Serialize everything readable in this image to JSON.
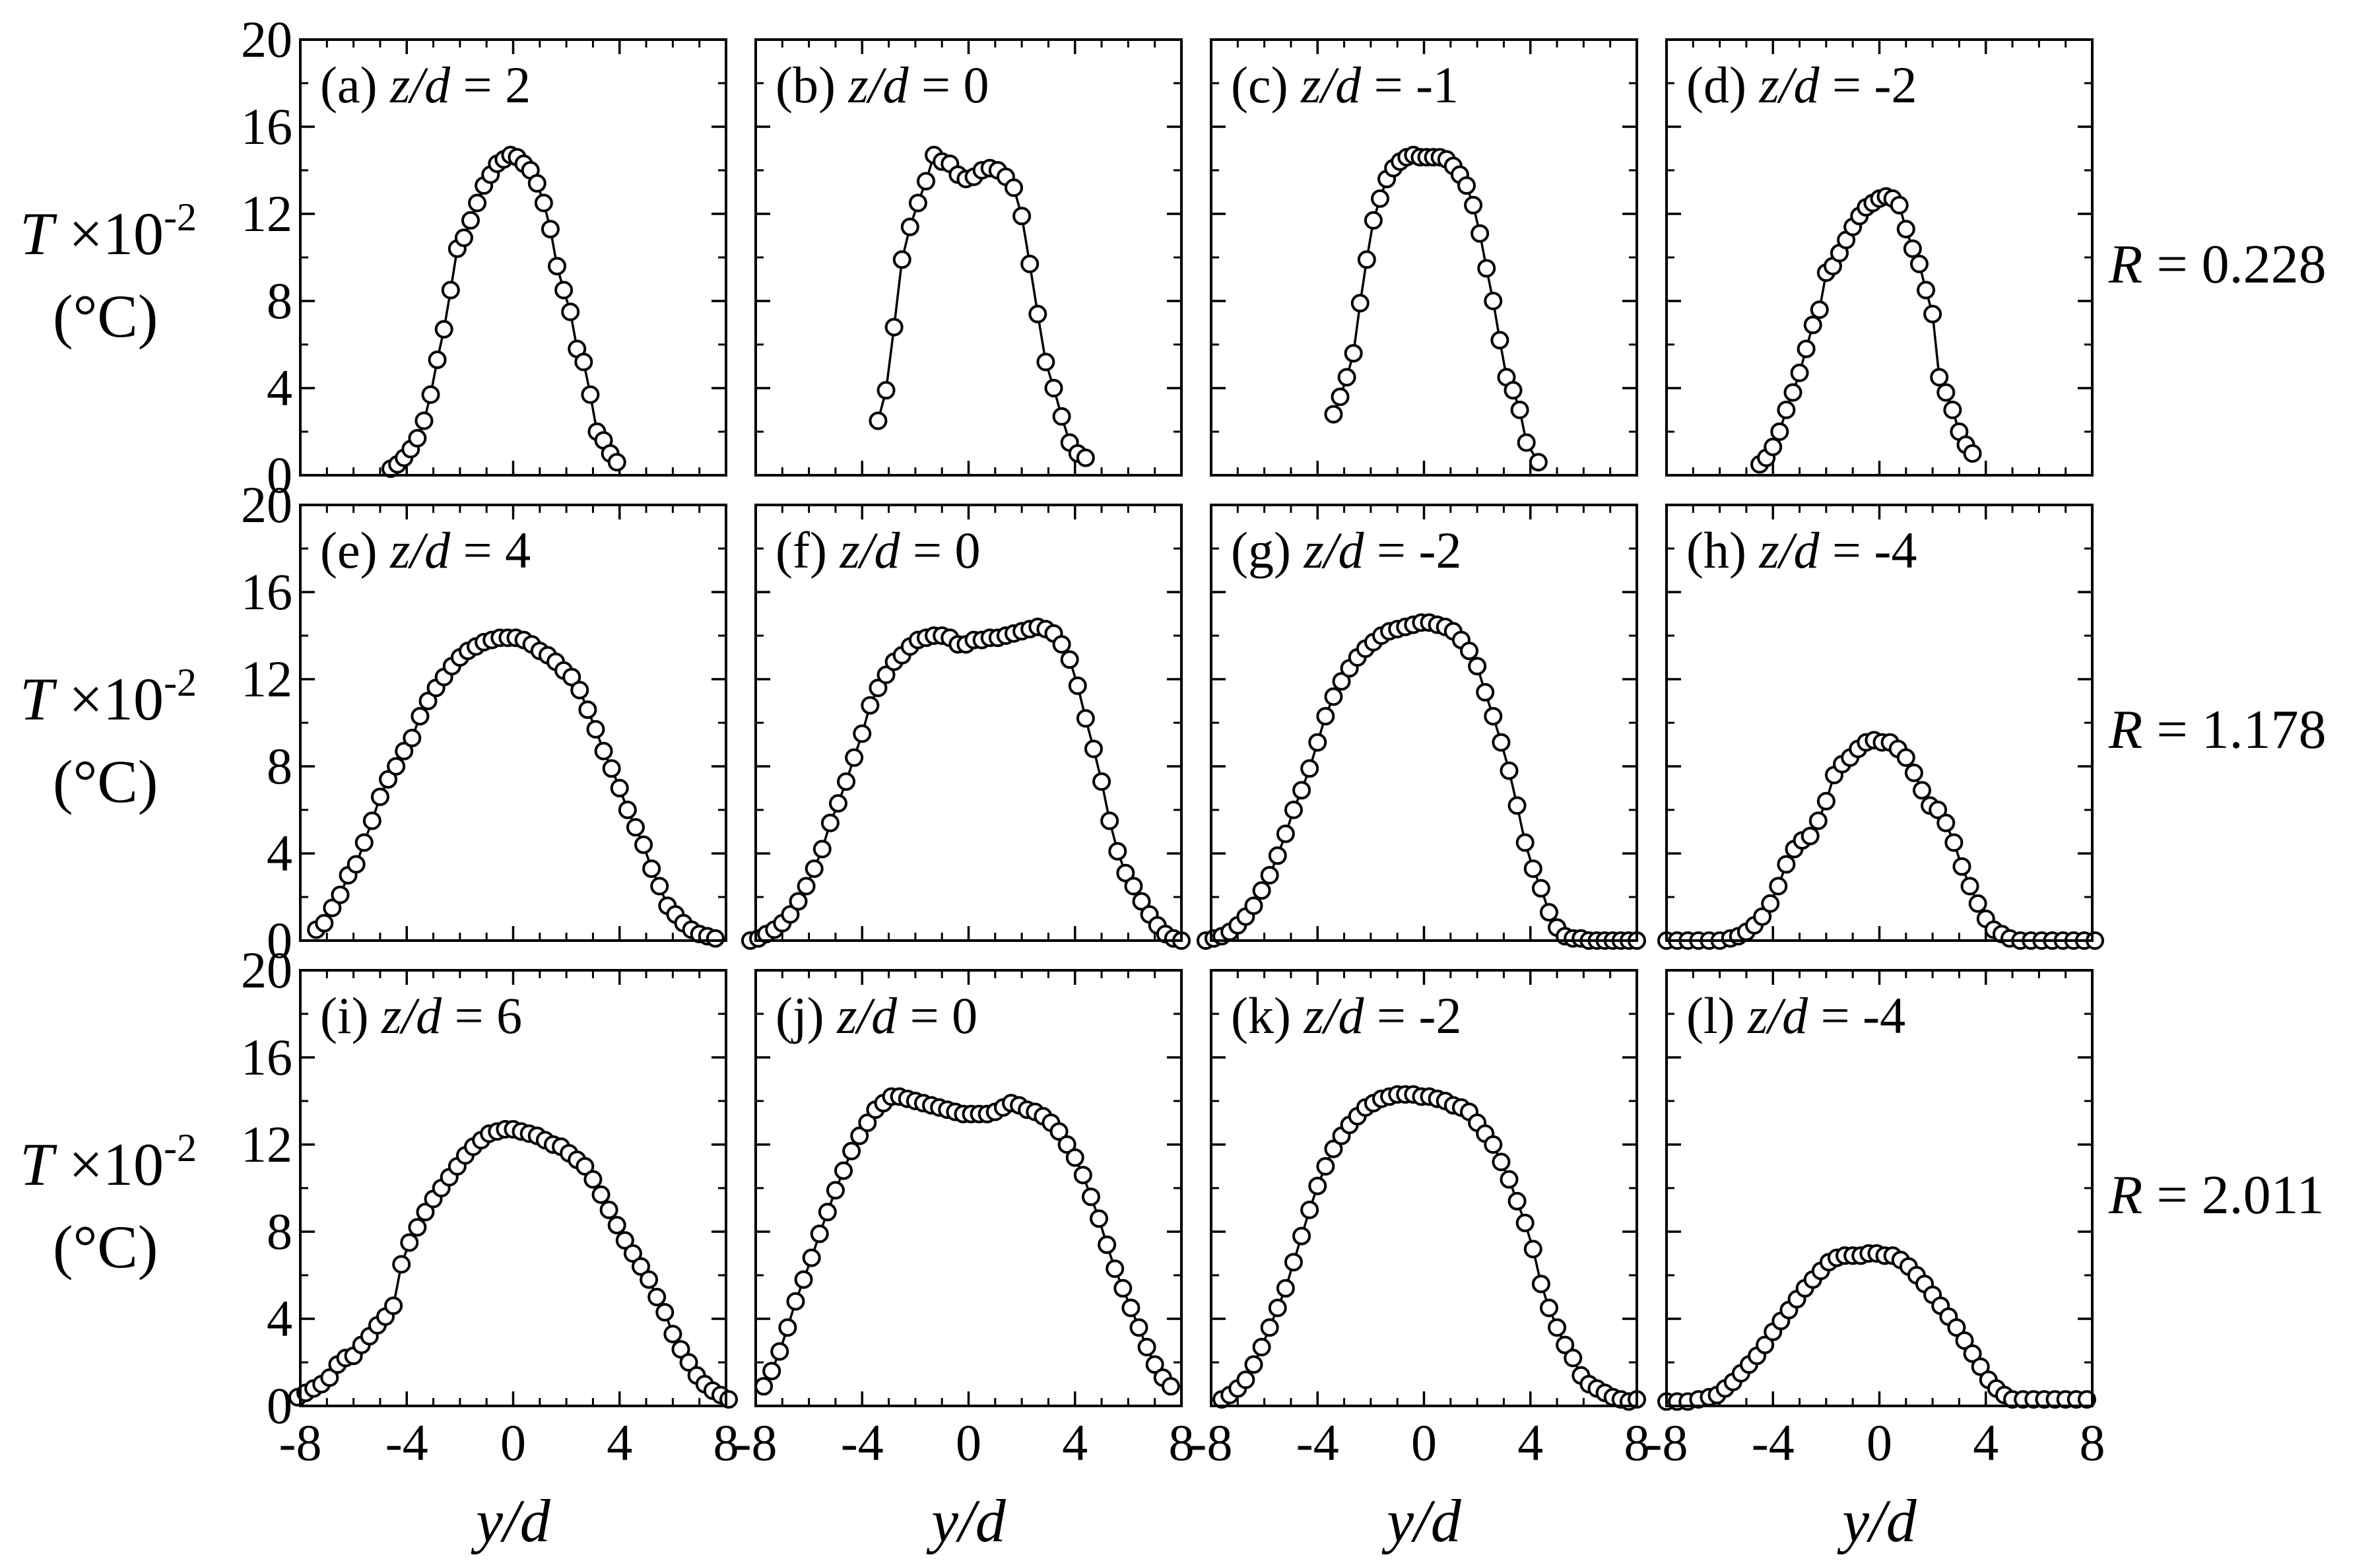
{
  "chart_data": {
    "type": "scatter",
    "layout": "3x4 grid",
    "y_label": {
      "var": "T",
      "mult": "×10",
      "exp": "-2",
      "unit": "(°C)"
    },
    "x_label": "y/d",
    "ylim": [
      0,
      20
    ],
    "y_ticks": [
      0,
      4,
      8,
      12,
      16,
      20
    ],
    "y_ticklabels": [
      "0",
      "4",
      "8",
      "12",
      "16",
      "20"
    ],
    "xlim": [
      -8,
      8
    ],
    "x_ticks": [
      -8,
      -4,
      0,
      4,
      8
    ],
    "x_ticklabels": [
      "-8",
      "-4",
      "0",
      "4",
      "8"
    ],
    "rows": [
      {
        "R_label": "R",
        "R_value": "= 0.228"
      },
      {
        "R_label": "R",
        "R_value": "= 1.178"
      },
      {
        "R_label": "R",
        "R_value": "= 2.011"
      }
    ],
    "panels": [
      {
        "letter": "(a)",
        "zd_label": "z/d",
        "zd_value": "= 2",
        "x": [
          -4.6,
          -4.35,
          -4.1,
          -3.85,
          -3.6,
          -3.35,
          -3.1,
          -2.85,
          -2.6,
          -2.35,
          -2.1,
          -1.85,
          -1.6,
          -1.35,
          -1.1,
          -0.85,
          -0.6,
          -0.35,
          -0.1,
          0.15,
          0.4,
          0.65,
          0.9,
          1.15,
          1.4,
          1.65,
          1.9,
          2.15,
          2.4,
          2.65,
          2.9,
          3.15,
          3.4,
          3.65,
          3.9
        ],
        "y": [
          0.3,
          0.5,
          0.8,
          1.2,
          1.7,
          2.5,
          3.7,
          5.3,
          6.7,
          8.5,
          10.4,
          10.9,
          11.7,
          12.5,
          13.3,
          13.8,
          14.3,
          14.5,
          14.7,
          14.6,
          14.3,
          14.0,
          13.4,
          12.5,
          11.3,
          9.6,
          8.5,
          7.5,
          5.8,
          5.2,
          3.7,
          2.0,
          1.6,
          1.0,
          0.6
        ]
      },
      {
        "letter": "(b)",
        "zd_label": "z/d",
        "zd_value": "= 0",
        "x": [
          -3.4,
          -3.1,
          -2.8,
          -2.5,
          -2.2,
          -1.9,
          -1.6,
          -1.3,
          -1.0,
          -0.7,
          -0.4,
          -0.1,
          0.2,
          0.5,
          0.8,
          1.1,
          1.4,
          1.7,
          2.0,
          2.3,
          2.6,
          2.9,
          3.2,
          3.5,
          3.8,
          4.1,
          4.4
        ],
        "y": [
          2.5,
          3.9,
          6.8,
          9.9,
          11.4,
          12.5,
          13.5,
          14.7,
          14.4,
          14.3,
          13.8,
          13.6,
          13.7,
          14.0,
          14.1,
          14.0,
          13.7,
          13.2,
          11.9,
          9.7,
          7.4,
          5.2,
          4.0,
          2.7,
          1.5,
          1.0,
          0.8
        ]
      },
      {
        "letter": "(c)",
        "zd_label": "z/d",
        "zd_value": "= -1",
        "x": [
          -3.4,
          -3.15,
          -2.9,
          -2.65,
          -2.4,
          -2.15,
          -1.9,
          -1.65,
          -1.4,
          -1.15,
          -0.9,
          -0.65,
          -0.4,
          -0.15,
          0.1,
          0.35,
          0.6,
          0.85,
          1.1,
          1.35,
          1.6,
          1.85,
          2.1,
          2.35,
          2.6,
          2.85,
          3.1,
          3.35,
          3.6,
          3.85,
          4.3
        ],
        "y": [
          2.8,
          3.6,
          4.5,
          5.6,
          7.9,
          9.9,
          11.7,
          12.7,
          13.6,
          14.1,
          14.4,
          14.6,
          14.7,
          14.6,
          14.6,
          14.6,
          14.6,
          14.5,
          14.2,
          13.8,
          13.3,
          12.4,
          11.1,
          9.5,
          8.0,
          6.2,
          4.5,
          3.9,
          3.0,
          1.5,
          0.6
        ]
      },
      {
        "letter": "(d)",
        "zd_label": "z/d",
        "zd_value": "= -2",
        "x": [
          -4.5,
          -4.25,
          -4.0,
          -3.75,
          -3.5,
          -3.25,
          -3.0,
          -2.75,
          -2.5,
          -2.25,
          -2.0,
          -1.75,
          -1.5,
          -1.25,
          -1.0,
          -0.75,
          -0.5,
          -0.25,
          0.0,
          0.25,
          0.5,
          0.75,
          1.0,
          1.25,
          1.5,
          1.75,
          2.0,
          2.25,
          2.5,
          2.75,
          3.0,
          3.25,
          3.5
        ],
        "y": [
          0.5,
          0.8,
          1.3,
          2.0,
          3.0,
          3.8,
          4.7,
          5.8,
          6.9,
          7.6,
          9.3,
          9.6,
          10.2,
          10.8,
          11.4,
          11.9,
          12.3,
          12.5,
          12.7,
          12.8,
          12.7,
          12.4,
          11.3,
          10.4,
          9.7,
          8.5,
          7.4,
          4.5,
          3.8,
          3.0,
          2.0,
          1.4,
          1.0
        ]
      },
      {
        "letter": "(e)",
        "zd_label": "z/d",
        "zd_value": "= 4",
        "x": [
          -7.4,
          -7.1,
          -6.8,
          -6.5,
          -6.2,
          -5.9,
          -5.6,
          -5.3,
          -5.0,
          -4.7,
          -4.4,
          -4.1,
          -3.8,
          -3.5,
          -3.2,
          -2.9,
          -2.6,
          -2.3,
          -2.0,
          -1.7,
          -1.4,
          -1.1,
          -0.8,
          -0.5,
          -0.2,
          0.1,
          0.4,
          0.7,
          1.0,
          1.3,
          1.6,
          1.9,
          2.2,
          2.5,
          2.8,
          3.1,
          3.4,
          3.7,
          4.0,
          4.3,
          4.6,
          4.9,
          5.2,
          5.5,
          5.8,
          6.1,
          6.4,
          6.7,
          7.0,
          7.3,
          7.6
        ],
        "y": [
          0.5,
          0.8,
          1.5,
          2.1,
          3.0,
          3.5,
          4.5,
          5.5,
          6.6,
          7.4,
          8.0,
          8.7,
          9.3,
          10.3,
          11.0,
          11.6,
          12.1,
          12.6,
          13.0,
          13.3,
          13.5,
          13.7,
          13.8,
          13.9,
          13.9,
          13.9,
          13.8,
          13.6,
          13.3,
          13.1,
          12.8,
          12.4,
          12.1,
          11.5,
          10.6,
          9.7,
          8.7,
          7.9,
          7.0,
          6.0,
          5.2,
          4.4,
          3.3,
          2.5,
          1.6,
          1.2,
          0.8,
          0.5,
          0.3,
          0.2,
          0.1
        ]
      },
      {
        "letter": "(f)",
        "zd_label": "z/d",
        "zd_value": "= 0",
        "x": [
          -8.2,
          -7.9,
          -7.6,
          -7.3,
          -7.0,
          -6.7,
          -6.4,
          -6.1,
          -5.8,
          -5.5,
          -5.2,
          -4.9,
          -4.6,
          -4.3,
          -4.0,
          -3.7,
          -3.4,
          -3.1,
          -2.8,
          -2.5,
          -2.2,
          -1.9,
          -1.6,
          -1.3,
          -1.0,
          -0.7,
          -0.4,
          -0.1,
          0.2,
          0.5,
          0.8,
          1.1,
          1.4,
          1.7,
          2.0,
          2.3,
          2.6,
          2.9,
          3.2,
          3.5,
          3.8,
          4.1,
          4.4,
          4.7,
          5.0,
          5.3,
          5.6,
          5.9,
          6.2,
          6.5,
          6.8,
          7.1,
          7.4,
          7.7,
          8.0
        ],
        "y": [
          0.0,
          0.1,
          0.3,
          0.5,
          0.8,
          1.2,
          1.8,
          2.5,
          3.3,
          4.2,
          5.4,
          6.3,
          7.3,
          8.4,
          9.5,
          10.8,
          11.6,
          12.2,
          12.8,
          13.1,
          13.5,
          13.8,
          13.9,
          14.0,
          14.0,
          13.9,
          13.6,
          13.6,
          13.8,
          13.8,
          13.9,
          13.9,
          14.0,
          14.1,
          14.2,
          14.3,
          14.4,
          14.3,
          14.1,
          13.6,
          12.9,
          11.7,
          10.2,
          8.8,
          7.3,
          5.5,
          4.1,
          3.1,
          2.5,
          1.8,
          1.2,
          0.7,
          0.3,
          0.1,
          0.0
        ]
      },
      {
        "letter": "(g)",
        "zd_label": "z/d",
        "zd_value": "= -2",
        "x": [
          -8.2,
          -7.9,
          -7.6,
          -7.3,
          -7.0,
          -6.7,
          -6.4,
          -6.1,
          -5.8,
          -5.5,
          -5.2,
          -4.9,
          -4.6,
          -4.3,
          -4.0,
          -3.7,
          -3.4,
          -3.1,
          -2.8,
          -2.5,
          -2.2,
          -1.9,
          -1.6,
          -1.3,
          -1.0,
          -0.7,
          -0.4,
          -0.1,
          0.2,
          0.5,
          0.8,
          1.1,
          1.4,
          1.7,
          2.0,
          2.3,
          2.6,
          2.9,
          3.2,
          3.5,
          3.8,
          4.1,
          4.4,
          4.7,
          5.0,
          5.3,
          5.6,
          5.9,
          6.2,
          6.5,
          6.8,
          7.1,
          7.4,
          7.7,
          8.0
        ],
        "y": [
          0.0,
          0.1,
          0.2,
          0.4,
          0.7,
          1.1,
          1.6,
          2.3,
          3.0,
          3.9,
          4.9,
          6.0,
          6.9,
          7.9,
          9.1,
          10.3,
          11.2,
          11.9,
          12.5,
          13.0,
          13.4,
          13.7,
          14.0,
          14.2,
          14.3,
          14.4,
          14.5,
          14.6,
          14.6,
          14.5,
          14.4,
          14.2,
          13.8,
          13.3,
          12.6,
          11.4,
          10.3,
          9.1,
          7.8,
          6.2,
          4.5,
          3.3,
          2.4,
          1.3,
          0.6,
          0.2,
          0.1,
          0.1,
          0.0,
          0.0,
          0.0,
          0.0,
          0.0,
          0.0,
          0.0
        ]
      },
      {
        "letter": "(h)",
        "zd_label": "z/d",
        "zd_value": "= -4",
        "x": [
          -8.0,
          -7.6,
          -7.2,
          -6.8,
          -6.4,
          -6.0,
          -5.6,
          -5.3,
          -5.0,
          -4.7,
          -4.4,
          -4.1,
          -3.8,
          -3.5,
          -3.2,
          -2.9,
          -2.6,
          -2.3,
          -2.0,
          -1.7,
          -1.4,
          -1.1,
          -0.8,
          -0.5,
          -0.2,
          0.1,
          0.4,
          0.7,
          1.0,
          1.3,
          1.6,
          1.9,
          2.2,
          2.5,
          2.8,
          3.1,
          3.4,
          3.7,
          4.0,
          4.3,
          4.6,
          4.9,
          5.3,
          5.7,
          6.1,
          6.5,
          6.9,
          7.3,
          7.7,
          8.1
        ],
        "y": [
          0.0,
          0.0,
          0.0,
          0.0,
          0.0,
          0.0,
          0.1,
          0.2,
          0.4,
          0.7,
          1.1,
          1.7,
          2.5,
          3.5,
          4.2,
          4.6,
          4.8,
          5.5,
          6.4,
          7.6,
          8.1,
          8.4,
          8.8,
          9.1,
          9.2,
          9.1,
          9.1,
          8.8,
          8.4,
          7.7,
          6.9,
          6.2,
          6.0,
          5.4,
          4.5,
          3.4,
          2.5,
          1.7,
          1.0,
          0.5,
          0.3,
          0.1,
          0.0,
          0.0,
          0.0,
          0.0,
          0.0,
          0.0,
          0.0,
          0.0
        ]
      },
      {
        "letter": "(i)",
        "zd_label": "z/d",
        "zd_value": "= 6",
        "x": [
          -8.1,
          -7.8,
          -7.5,
          -7.2,
          -6.9,
          -6.6,
          -6.3,
          -6.0,
          -5.7,
          -5.4,
          -5.1,
          -4.8,
          -4.5,
          -4.2,
          -3.9,
          -3.6,
          -3.3,
          -3.0,
          -2.7,
          -2.4,
          -2.1,
          -1.8,
          -1.5,
          -1.2,
          -0.9,
          -0.6,
          -0.3,
          0.0,
          0.3,
          0.6,
          0.9,
          1.2,
          1.5,
          1.8,
          2.1,
          2.4,
          2.7,
          3.0,
          3.3,
          3.6,
          3.9,
          4.2,
          4.5,
          4.8,
          5.1,
          5.4,
          5.7,
          6.0,
          6.3,
          6.6,
          6.9,
          7.2,
          7.5,
          7.8,
          8.1
        ],
        "y": [
          0.4,
          0.6,
          0.8,
          1.0,
          1.3,
          1.9,
          2.2,
          2.3,
          2.8,
          3.2,
          3.7,
          4.1,
          4.6,
          6.5,
          7.5,
          8.2,
          8.9,
          9.5,
          10.0,
          10.5,
          11.0,
          11.5,
          11.9,
          12.2,
          12.5,
          12.6,
          12.7,
          12.7,
          12.6,
          12.5,
          12.4,
          12.2,
          12.0,
          11.9,
          11.6,
          11.3,
          11.0,
          10.4,
          9.7,
          9.0,
          8.3,
          7.6,
          7.0,
          6.4,
          5.8,
          5.0,
          4.3,
          3.3,
          2.6,
          2.0,
          1.4,
          1.0,
          0.7,
          0.5,
          0.3
        ]
      },
      {
        "letter": "(j)",
        "zd_label": "z/d",
        "zd_value": "= 0",
        "x": [
          -7.7,
          -7.4,
          -7.1,
          -6.8,
          -6.5,
          -6.2,
          -5.9,
          -5.6,
          -5.3,
          -5.0,
          -4.7,
          -4.4,
          -4.1,
          -3.8,
          -3.5,
          -3.2,
          -2.9,
          -2.6,
          -2.3,
          -2.0,
          -1.7,
          -1.4,
          -1.1,
          -0.8,
          -0.5,
          -0.2,
          0.1,
          0.4,
          0.7,
          1.0,
          1.3,
          1.6,
          1.9,
          2.2,
          2.5,
          2.8,
          3.1,
          3.4,
          3.7,
          4.0,
          4.3,
          4.6,
          4.9,
          5.2,
          5.5,
          5.8,
          6.1,
          6.4,
          6.7,
          7.0,
          7.3,
          7.6
        ],
        "y": [
          0.9,
          1.6,
          2.5,
          3.6,
          4.8,
          5.8,
          6.8,
          7.9,
          8.9,
          9.9,
          10.8,
          11.7,
          12.4,
          13.0,
          13.6,
          13.9,
          14.2,
          14.2,
          14.1,
          14.0,
          13.9,
          13.8,
          13.7,
          13.6,
          13.5,
          13.4,
          13.4,
          13.4,
          13.4,
          13.5,
          13.7,
          13.9,
          13.8,
          13.6,
          13.5,
          13.3,
          13.0,
          12.6,
          12.0,
          11.4,
          10.6,
          9.6,
          8.6,
          7.4,
          6.3,
          5.4,
          4.5,
          3.6,
          2.7,
          1.9,
          1.3,
          0.9
        ]
      },
      {
        "letter": "(k)",
        "zd_label": "z/d",
        "zd_value": "= -2",
        "x": [
          -7.6,
          -7.3,
          -7.0,
          -6.7,
          -6.4,
          -6.1,
          -5.8,
          -5.5,
          -5.2,
          -4.9,
          -4.6,
          -4.3,
          -4.0,
          -3.7,
          -3.4,
          -3.1,
          -2.8,
          -2.5,
          -2.2,
          -1.9,
          -1.6,
          -1.3,
          -1.0,
          -0.7,
          -0.4,
          -0.1,
          0.2,
          0.5,
          0.8,
          1.1,
          1.4,
          1.7,
          2.0,
          2.3,
          2.6,
          2.9,
          3.2,
          3.5,
          3.8,
          4.1,
          4.4,
          4.7,
          5.0,
          5.3,
          5.6,
          5.9,
          6.2,
          6.5,
          6.8,
          7.1,
          7.4,
          7.7,
          8.0
        ],
        "y": [
          0.3,
          0.5,
          0.8,
          1.2,
          1.9,
          2.7,
          3.6,
          4.5,
          5.4,
          6.6,
          7.8,
          9.0,
          10.1,
          11.0,
          11.8,
          12.4,
          12.9,
          13.3,
          13.7,
          13.9,
          14.1,
          14.2,
          14.3,
          14.3,
          14.3,
          14.2,
          14.2,
          14.1,
          14.0,
          13.8,
          13.7,
          13.5,
          13.0,
          12.5,
          12.0,
          11.2,
          10.4,
          9.4,
          8.4,
          7.2,
          5.6,
          4.5,
          3.6,
          2.8,
          2.2,
          1.4,
          1.0,
          0.8,
          0.6,
          0.4,
          0.3,
          0.2,
          0.3
        ]
      },
      {
        "letter": "(l)",
        "zd_label": "z/d",
        "zd_value": "= -4",
        "x": [
          -8.0,
          -7.6,
          -7.2,
          -6.8,
          -6.4,
          -6.1,
          -5.8,
          -5.5,
          -5.2,
          -4.9,
          -4.6,
          -4.3,
          -4.0,
          -3.7,
          -3.4,
          -3.1,
          -2.8,
          -2.5,
          -2.2,
          -1.9,
          -1.6,
          -1.3,
          -1.0,
          -0.7,
          -0.4,
          -0.1,
          0.2,
          0.5,
          0.8,
          1.1,
          1.4,
          1.7,
          2.0,
          2.3,
          2.6,
          2.9,
          3.2,
          3.5,
          3.8,
          4.1,
          4.4,
          4.7,
          5.0,
          5.4,
          5.8,
          6.2,
          6.6,
          7.0,
          7.4,
          7.8
        ],
        "y": [
          0.2,
          0.2,
          0.2,
          0.3,
          0.4,
          0.5,
          0.8,
          1.1,
          1.5,
          1.9,
          2.3,
          2.8,
          3.4,
          3.9,
          4.4,
          4.9,
          5.4,
          5.8,
          6.2,
          6.6,
          6.8,
          6.9,
          6.9,
          6.9,
          7.0,
          7.0,
          6.9,
          6.9,
          6.7,
          6.4,
          6.0,
          5.6,
          5.1,
          4.6,
          4.1,
          3.6,
          3.0,
          2.4,
          1.8,
          1.2,
          0.8,
          0.5,
          0.3,
          0.3,
          0.3,
          0.3,
          0.3,
          0.3,
          0.3,
          0.3
        ]
      }
    ]
  }
}
